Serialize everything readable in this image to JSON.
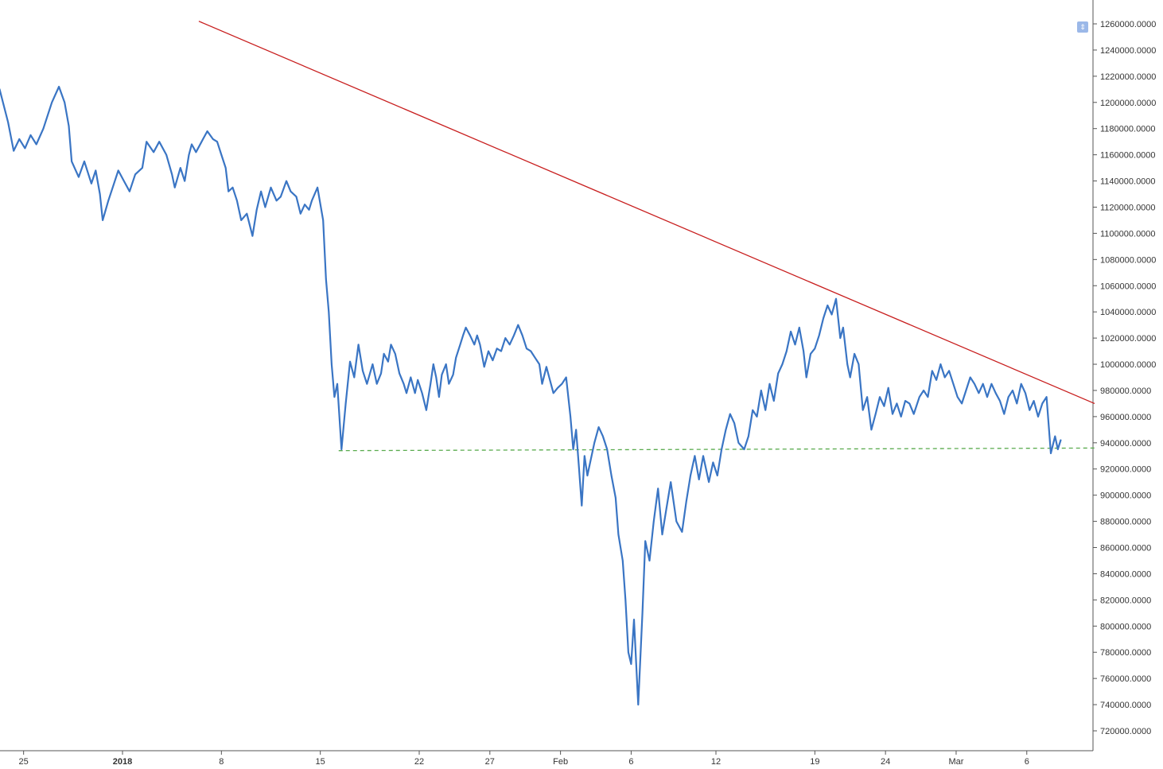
{
  "chart_data": {
    "type": "line",
    "y_ticks": [
      "1260000.0000",
      "1240000.0000",
      "1220000.0000",
      "1200000.0000",
      "1180000.0000",
      "1160000.0000",
      "1140000.0000",
      "1120000.0000",
      "1100000.0000",
      "1080000.0000",
      "1060000.0000",
      "1040000.0000",
      "1020000.0000",
      "1000000.0000",
      "980000.0000",
      "960000.0000",
      "940000.0000",
      "920000.0000",
      "900000.0000",
      "880000.0000",
      "860000.0000",
      "840000.0000",
      "820000.0000",
      "800000.0000",
      "780000.0000",
      "760000.0000",
      "740000.0000",
      "720000.0000"
    ],
    "x_ticks": [
      {
        "label": "25",
        "day": -7,
        "bold": false
      },
      {
        "label": "2018",
        "day": 0,
        "bold": true
      },
      {
        "label": "8",
        "day": 7,
        "bold": false
      },
      {
        "label": "15",
        "day": 14,
        "bold": false
      },
      {
        "label": "22",
        "day": 21,
        "bold": false
      },
      {
        "label": "27",
        "day": 26,
        "bold": false
      },
      {
        "label": "Feb",
        "day": 31,
        "bold": false
      },
      {
        "label": "6",
        "day": 36,
        "bold": false
      },
      {
        "label": "12",
        "day": 42,
        "bold": false
      },
      {
        "label": "19",
        "day": 49,
        "bold": false
      },
      {
        "label": "24",
        "day": 54,
        "bold": false
      },
      {
        "label": "Mar",
        "day": 59,
        "bold": false
      },
      {
        "label": "6",
        "day": 64,
        "bold": false
      }
    ],
    "x_unit": "days since 2018-01-01",
    "ylim": [
      711000,
      1270000
    ],
    "series": [
      {
        "name": "",
        "color": "#3a75c4",
        "points": [
          [
            -8.7,
            1210000
          ],
          [
            -8.1,
            1185000
          ],
          [
            -7.7,
            1163000
          ],
          [
            -7.3,
            1172000
          ],
          [
            -6.9,
            1165000
          ],
          [
            -6.5,
            1175000
          ],
          [
            -6.1,
            1168000
          ],
          [
            -5.6,
            1180000
          ],
          [
            -5.0,
            1200000
          ],
          [
            -4.5,
            1212000
          ],
          [
            -4.1,
            1200000
          ],
          [
            -3.8,
            1182000
          ],
          [
            -3.6,
            1155000
          ],
          [
            -3.1,
            1143000
          ],
          [
            -2.7,
            1155000
          ],
          [
            -2.2,
            1138000
          ],
          [
            -1.9,
            1148000
          ],
          [
            -1.6,
            1130000
          ],
          [
            -1.4,
            1110000
          ],
          [
            -1.0,
            1125000
          ],
          [
            -0.6,
            1138000
          ],
          [
            -0.3,
            1148000
          ],
          [
            0.1,
            1140000
          ],
          [
            0.5,
            1132000
          ],
          [
            0.9,
            1145000
          ],
          [
            1.4,
            1150000
          ],
          [
            1.7,
            1170000
          ],
          [
            2.2,
            1162000
          ],
          [
            2.6,
            1170000
          ],
          [
            3.1,
            1160000
          ],
          [
            3.5,
            1145000
          ],
          [
            3.7,
            1135000
          ],
          [
            4.1,
            1150000
          ],
          [
            4.4,
            1140000
          ],
          [
            4.7,
            1160000
          ],
          [
            4.9,
            1168000
          ],
          [
            5.2,
            1162000
          ],
          [
            5.7,
            1172000
          ],
          [
            6.0,
            1178000
          ],
          [
            6.4,
            1172000
          ],
          [
            6.7,
            1170000
          ],
          [
            7.0,
            1160000
          ],
          [
            7.3,
            1150000
          ],
          [
            7.5,
            1132000
          ],
          [
            7.8,
            1135000
          ],
          [
            8.1,
            1125000
          ],
          [
            8.4,
            1110000
          ],
          [
            8.8,
            1115000
          ],
          [
            9.2,
            1098000
          ],
          [
            9.5,
            1118000
          ],
          [
            9.8,
            1132000
          ],
          [
            10.1,
            1120000
          ],
          [
            10.5,
            1135000
          ],
          [
            10.9,
            1125000
          ],
          [
            11.2,
            1128000
          ],
          [
            11.6,
            1140000
          ],
          [
            11.9,
            1132000
          ],
          [
            12.3,
            1128000
          ],
          [
            12.6,
            1115000
          ],
          [
            12.9,
            1122000
          ],
          [
            13.2,
            1118000
          ],
          [
            13.4,
            1125000
          ],
          [
            13.8,
            1135000
          ],
          [
            14.2,
            1110000
          ],
          [
            14.4,
            1065000
          ],
          [
            14.6,
            1040000
          ],
          [
            14.8,
            1000000
          ],
          [
            15.0,
            975000
          ],
          [
            15.2,
            985000
          ],
          [
            15.5,
            935000
          ],
          [
            15.8,
            970000
          ],
          [
            16.1,
            1002000
          ],
          [
            16.4,
            990000
          ],
          [
            16.7,
            1015000
          ],
          [
            17.0,
            995000
          ],
          [
            17.3,
            985000
          ],
          [
            17.7,
            1000000
          ],
          [
            18.0,
            985000
          ],
          [
            18.3,
            993000
          ],
          [
            18.5,
            1008000
          ],
          [
            18.8,
            1002000
          ],
          [
            19.0,
            1015000
          ],
          [
            19.3,
            1008000
          ],
          [
            19.6,
            993000
          ],
          [
            19.9,
            985000
          ],
          [
            20.1,
            978000
          ],
          [
            20.4,
            990000
          ],
          [
            20.7,
            978000
          ],
          [
            20.9,
            988000
          ],
          [
            21.2,
            978000
          ],
          [
            21.5,
            965000
          ],
          [
            21.8,
            985000
          ],
          [
            22.0,
            1000000
          ],
          [
            22.2,
            990000
          ],
          [
            22.4,
            975000
          ],
          [
            22.6,
            992000
          ],
          [
            22.9,
            1000000
          ],
          [
            23.1,
            985000
          ],
          [
            23.4,
            992000
          ],
          [
            23.6,
            1005000
          ],
          [
            23.9,
            1015000
          ],
          [
            24.1,
            1022000
          ],
          [
            24.3,
            1028000
          ],
          [
            24.6,
            1022000
          ],
          [
            24.9,
            1015000
          ],
          [
            25.1,
            1022000
          ],
          [
            25.3,
            1015000
          ],
          [
            25.6,
            998000
          ],
          [
            25.9,
            1010000
          ],
          [
            26.2,
            1003000
          ],
          [
            26.5,
            1012000
          ],
          [
            26.8,
            1010000
          ],
          [
            27.1,
            1020000
          ],
          [
            27.4,
            1015000
          ],
          [
            27.7,
            1022000
          ],
          [
            28.0,
            1030000
          ],
          [
            28.3,
            1022000
          ],
          [
            28.6,
            1012000
          ],
          [
            28.9,
            1010000
          ],
          [
            29.2,
            1005000
          ],
          [
            29.5,
            1000000
          ],
          [
            29.7,
            985000
          ],
          [
            30.0,
            998000
          ],
          [
            30.2,
            990000
          ],
          [
            30.5,
            978000
          ],
          [
            30.8,
            982000
          ],
          [
            31.1,
            985000
          ],
          [
            31.4,
            990000
          ],
          [
            31.7,
            960000
          ],
          [
            31.9,
            935000
          ],
          [
            32.1,
            950000
          ],
          [
            32.3,
            922000
          ],
          [
            32.5,
            892000
          ],
          [
            32.7,
            930000
          ],
          [
            32.9,
            915000
          ],
          [
            33.1,
            925000
          ],
          [
            33.4,
            940000
          ],
          [
            33.7,
            952000
          ],
          [
            34.0,
            945000
          ],
          [
            34.3,
            935000
          ],
          [
            34.6,
            915000
          ],
          [
            34.9,
            898000
          ],
          [
            35.1,
            870000
          ],
          [
            35.4,
            850000
          ],
          [
            35.6,
            820000
          ],
          [
            35.8,
            780000
          ],
          [
            36.0,
            771000
          ],
          [
            36.2,
            805000
          ],
          [
            36.5,
            740000
          ],
          [
            36.8,
            810000
          ],
          [
            37.0,
            865000
          ],
          [
            37.3,
            850000
          ],
          [
            37.6,
            880000
          ],
          [
            37.9,
            905000
          ],
          [
            38.2,
            870000
          ],
          [
            38.5,
            890000
          ],
          [
            38.8,
            910000
          ],
          [
            39.2,
            880000
          ],
          [
            39.6,
            872000
          ],
          [
            39.9,
            895000
          ],
          [
            40.2,
            915000
          ],
          [
            40.5,
            930000
          ],
          [
            40.8,
            912000
          ],
          [
            41.1,
            930000
          ],
          [
            41.5,
            910000
          ],
          [
            41.8,
            925000
          ],
          [
            42.1,
            915000
          ],
          [
            42.4,
            935000
          ],
          [
            42.7,
            950000
          ],
          [
            43.0,
            962000
          ],
          [
            43.3,
            955000
          ],
          [
            43.6,
            940000
          ],
          [
            44.0,
            935000
          ],
          [
            44.3,
            945000
          ],
          [
            44.6,
            965000
          ],
          [
            44.9,
            960000
          ],
          [
            45.2,
            980000
          ],
          [
            45.5,
            965000
          ],
          [
            45.8,
            985000
          ],
          [
            46.1,
            972000
          ],
          [
            46.4,
            993000
          ],
          [
            46.7,
            1000000
          ],
          [
            47.0,
            1010000
          ],
          [
            47.3,
            1025000
          ],
          [
            47.6,
            1015000
          ],
          [
            47.9,
            1028000
          ],
          [
            48.2,
            1010000
          ],
          [
            48.4,
            990000
          ],
          [
            48.7,
            1008000
          ],
          [
            49.0,
            1012000
          ],
          [
            49.3,
            1022000
          ],
          [
            49.6,
            1035000
          ],
          [
            49.9,
            1045000
          ],
          [
            50.2,
            1038000
          ],
          [
            50.5,
            1050000
          ],
          [
            50.8,
            1020000
          ],
          [
            51.0,
            1028000
          ],
          [
            51.3,
            1000000
          ],
          [
            51.5,
            990000
          ],
          [
            51.8,
            1008000
          ],
          [
            52.1,
            1000000
          ],
          [
            52.4,
            965000
          ],
          [
            52.7,
            975000
          ],
          [
            53.0,
            950000
          ],
          [
            53.3,
            962000
          ],
          [
            53.6,
            975000
          ],
          [
            53.9,
            968000
          ],
          [
            54.2,
            982000
          ],
          [
            54.5,
            962000
          ],
          [
            54.8,
            970000
          ],
          [
            55.1,
            960000
          ],
          [
            55.4,
            972000
          ],
          [
            55.7,
            970000
          ],
          [
            56.0,
            962000
          ],
          [
            56.4,
            975000
          ],
          [
            56.7,
            980000
          ],
          [
            57.0,
            975000
          ],
          [
            57.3,
            995000
          ],
          [
            57.6,
            988000
          ],
          [
            57.9,
            1000000
          ],
          [
            58.2,
            990000
          ],
          [
            58.5,
            995000
          ],
          [
            58.8,
            985000
          ],
          [
            59.1,
            975000
          ],
          [
            59.4,
            970000
          ],
          [
            59.7,
            980000
          ],
          [
            60.0,
            990000
          ],
          [
            60.3,
            985000
          ],
          [
            60.6,
            978000
          ],
          [
            60.9,
            985000
          ],
          [
            61.2,
            975000
          ],
          [
            61.5,
            985000
          ],
          [
            61.8,
            978000
          ],
          [
            62.1,
            972000
          ],
          [
            62.4,
            962000
          ],
          [
            62.7,
            975000
          ],
          [
            63.0,
            980000
          ],
          [
            63.3,
            970000
          ],
          [
            63.6,
            985000
          ],
          [
            63.9,
            978000
          ],
          [
            64.2,
            965000
          ],
          [
            64.5,
            972000
          ],
          [
            64.8,
            960000
          ],
          [
            65.1,
            970000
          ],
          [
            65.4,
            975000
          ],
          [
            65.7,
            932000
          ],
          [
            66.0,
            945000
          ],
          [
            66.2,
            935000
          ],
          [
            66.4,
            942000
          ]
        ]
      }
    ],
    "trendlines": [
      {
        "name": "",
        "color": "#c81e1e",
        "style": "solid",
        "from": [
          5.4,
          1262000
        ],
        "to": [
          68.8,
          970000
        ]
      },
      {
        "name": "",
        "color": "#5aab4e",
        "style": "dashed",
        "from": [
          15.3,
          934000
        ],
        "to": [
          68.8,
          936000
        ]
      }
    ]
  },
  "controls": {
    "scale_button_icon": "scale-arrows-icon",
    "scale_button_glyph": "⇕"
  }
}
